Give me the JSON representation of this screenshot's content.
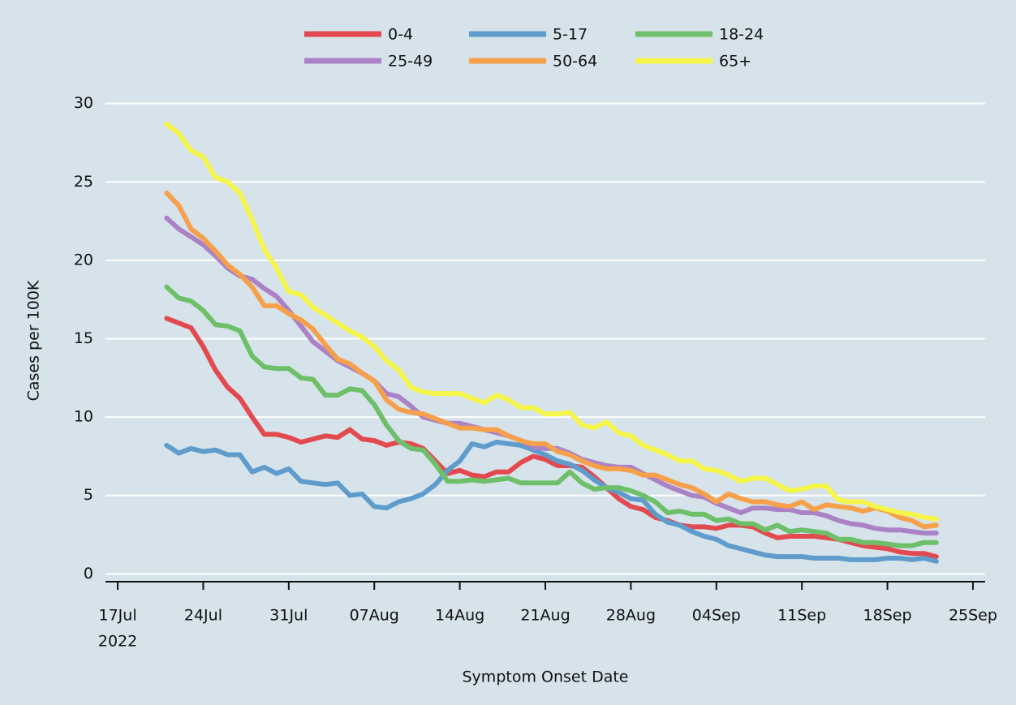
{
  "chart_data": {
    "type": "line",
    "ylabel": "Cases per 100K",
    "xlabel": "Symptom Onset Date",
    "x_year": "2022",
    "x": [
      "2022-07-21",
      "2022-07-22",
      "2022-07-23",
      "2022-07-24",
      "2022-07-25",
      "2022-07-26",
      "2022-07-27",
      "2022-07-28",
      "2022-07-29",
      "2022-07-30",
      "2022-07-31",
      "2022-08-01",
      "2022-08-02",
      "2022-08-03",
      "2022-08-04",
      "2022-08-05",
      "2022-08-06",
      "2022-08-07",
      "2022-08-08",
      "2022-08-09",
      "2022-08-10",
      "2022-08-11",
      "2022-08-12",
      "2022-08-13",
      "2022-08-14",
      "2022-08-15",
      "2022-08-16",
      "2022-08-17",
      "2022-08-18",
      "2022-08-19",
      "2022-08-20",
      "2022-08-21",
      "2022-08-22",
      "2022-08-23",
      "2022-08-24",
      "2022-08-25",
      "2022-08-26",
      "2022-08-27",
      "2022-08-28",
      "2022-08-29",
      "2022-08-30",
      "2022-08-31",
      "2022-09-01",
      "2022-09-02",
      "2022-09-03",
      "2022-09-04",
      "2022-09-05",
      "2022-09-06",
      "2022-09-07",
      "2022-09-08",
      "2022-09-09",
      "2022-09-10",
      "2022-09-11",
      "2022-09-12",
      "2022-09-13",
      "2022-09-14",
      "2022-09-15",
      "2022-09-16",
      "2022-09-17",
      "2022-09-18",
      "2022-09-19",
      "2022-09-20",
      "2022-09-21",
      "2022-09-22"
    ],
    "series": [
      {
        "name": "0-4",
        "color": "#e34a4f",
        "values": [
          16.3,
          16.0,
          15.7,
          14.5,
          13.0,
          11.9,
          11.2,
          10.0,
          8.9,
          8.9,
          8.7,
          8.4,
          8.6,
          8.8,
          8.7,
          9.2,
          8.6,
          8.5,
          8.2,
          8.4,
          8.3,
          8.0,
          7.2,
          6.4,
          6.6,
          6.3,
          6.2,
          6.5,
          6.5,
          7.1,
          7.5,
          7.3,
          6.9,
          6.9,
          6.8,
          6.2,
          5.5,
          4.8,
          4.3,
          4.1,
          3.6,
          3.4,
          3.1,
          3.0,
          3.0,
          2.9,
          3.1,
          3.1,
          3.0,
          2.6,
          2.3,
          2.4,
          2.4,
          2.4,
          2.3,
          2.2,
          2.0,
          1.8,
          1.7,
          1.6,
          1.4,
          1.3,
          1.3,
          1.1
        ]
      },
      {
        "name": "5-17",
        "color": "#5f9ccc",
        "values": [
          8.2,
          7.7,
          8.0,
          7.8,
          7.9,
          7.6,
          7.6,
          6.5,
          6.8,
          6.4,
          6.7,
          5.9,
          5.8,
          5.7,
          5.8,
          5.0,
          5.1,
          4.3,
          4.2,
          4.6,
          4.8,
          5.1,
          5.7,
          6.6,
          7.2,
          8.3,
          8.1,
          8.4,
          8.3,
          8.2,
          7.9,
          7.6,
          7.2,
          7.0,
          6.6,
          6.0,
          5.5,
          5.2,
          4.8,
          4.7,
          3.8,
          3.3,
          3.1,
          2.7,
          2.4,
          2.2,
          1.8,
          1.6,
          1.4,
          1.2,
          1.1,
          1.1,
          1.1,
          1.0,
          1.0,
          1.0,
          0.9,
          0.9,
          0.9,
          1.0,
          1.0,
          0.9,
          1.0,
          0.8
        ]
      },
      {
        "name": "18-24",
        "color": "#6dbf6a",
        "values": [
          18.3,
          17.6,
          17.4,
          16.8,
          15.9,
          15.8,
          15.5,
          13.9,
          13.2,
          13.1,
          13.1,
          12.5,
          12.4,
          11.4,
          11.4,
          11.8,
          11.7,
          10.8,
          9.5,
          8.5,
          8.0,
          7.9,
          7.0,
          5.9,
          5.9,
          6.0,
          5.9,
          6.0,
          6.1,
          5.8,
          5.8,
          5.8,
          5.8,
          6.5,
          5.8,
          5.4,
          5.5,
          5.5,
          5.3,
          5.0,
          4.6,
          3.9,
          4.0,
          3.8,
          3.8,
          3.4,
          3.5,
          3.2,
          3.2,
          2.8,
          3.1,
          2.7,
          2.8,
          2.7,
          2.6,
          2.2,
          2.2,
          2.0,
          2.0,
          1.9,
          1.8,
          1.8,
          2.0,
          2.0
        ]
      },
      {
        "name": "25-49",
        "color": "#ab82c5",
        "values": [
          22.7,
          22.0,
          21.5,
          21.0,
          20.3,
          19.5,
          19.0,
          18.8,
          18.2,
          17.7,
          16.8,
          15.8,
          14.8,
          14.2,
          13.6,
          13.2,
          12.8,
          12.3,
          11.5,
          11.3,
          10.7,
          10.0,
          9.8,
          9.6,
          9.6,
          9.4,
          9.2,
          9.0,
          8.8,
          8.5,
          8.1,
          8.0,
          8.0,
          7.7,
          7.3,
          7.1,
          6.9,
          6.8,
          6.8,
          6.4,
          6.0,
          5.6,
          5.3,
          5.0,
          4.9,
          4.5,
          4.2,
          3.9,
          4.2,
          4.2,
          4.1,
          4.1,
          3.9,
          3.9,
          3.7,
          3.4,
          3.2,
          3.1,
          2.9,
          2.8,
          2.8,
          2.7,
          2.6,
          2.6
        ]
      },
      {
        "name": "50-64",
        "color": "#f7a04b",
        "values": [
          24.3,
          23.5,
          22.0,
          21.4,
          20.6,
          19.7,
          19.1,
          18.3,
          17.1,
          17.1,
          16.6,
          16.2,
          15.6,
          14.6,
          13.7,
          13.4,
          12.8,
          12.3,
          11.1,
          10.5,
          10.3,
          10.2,
          9.9,
          9.6,
          9.3,
          9.3,
          9.2,
          9.2,
          8.8,
          8.5,
          8.3,
          8.3,
          7.8,
          7.6,
          7.2,
          6.9,
          6.7,
          6.7,
          6.6,
          6.3,
          6.3,
          6.0,
          5.7,
          5.5,
          5.1,
          4.6,
          5.1,
          4.8,
          4.6,
          4.6,
          4.4,
          4.3,
          4.6,
          4.1,
          4.4,
          4.3,
          4.2,
          4.0,
          4.2,
          4.0,
          3.6,
          3.4,
          3.0,
          3.1
        ]
      },
      {
        "name": "65+",
        "color": "#f5f54a",
        "values": [
          28.7,
          28.1,
          27.0,
          26.6,
          25.3,
          25.0,
          24.3,
          22.6,
          20.7,
          19.5,
          18.0,
          17.8,
          17.0,
          16.5,
          16.0,
          15.5,
          15.1,
          14.5,
          13.6,
          13.0,
          11.9,
          11.6,
          11.5,
          11.5,
          11.5,
          11.2,
          10.9,
          11.4,
          11.1,
          10.6,
          10.6,
          10.2,
          10.2,
          10.3,
          9.5,
          9.3,
          9.7,
          9.0,
          8.8,
          8.2,
          7.9,
          7.6,
          7.2,
          7.2,
          6.7,
          6.6,
          6.3,
          5.9,
          6.1,
          6.1,
          5.7,
          5.3,
          5.4,
          5.6,
          5.6,
          4.7,
          4.6,
          4.6,
          4.3,
          4.1,
          3.9,
          3.8,
          3.6,
          3.5
        ]
      }
    ],
    "xlim": [
      "2022-07-16",
      "2022-09-26"
    ],
    "xticks": [
      {
        "value": "2022-07-17",
        "label": "17Jul"
      },
      {
        "value": "2022-07-24",
        "label": "24Jul"
      },
      {
        "value": "2022-07-31",
        "label": "31Jul"
      },
      {
        "value": "2022-08-07",
        "label": "07Aug"
      },
      {
        "value": "2022-08-14",
        "label": "14Aug"
      },
      {
        "value": "2022-08-21",
        "label": "21Aug"
      },
      {
        "value": "2022-08-28",
        "label": "28Aug"
      },
      {
        "value": "2022-09-04",
        "label": "04Sep"
      },
      {
        "value": "2022-09-11",
        "label": "11Sep"
      },
      {
        "value": "2022-09-18",
        "label": "18Sep"
      },
      {
        "value": "2022-09-25",
        "label": "25Sep"
      }
    ],
    "ylim": [
      -0.5,
      30.5
    ],
    "yticks": [
      0,
      5,
      10,
      15,
      20,
      25,
      30
    ],
    "grid": true,
    "legend": "top"
  }
}
